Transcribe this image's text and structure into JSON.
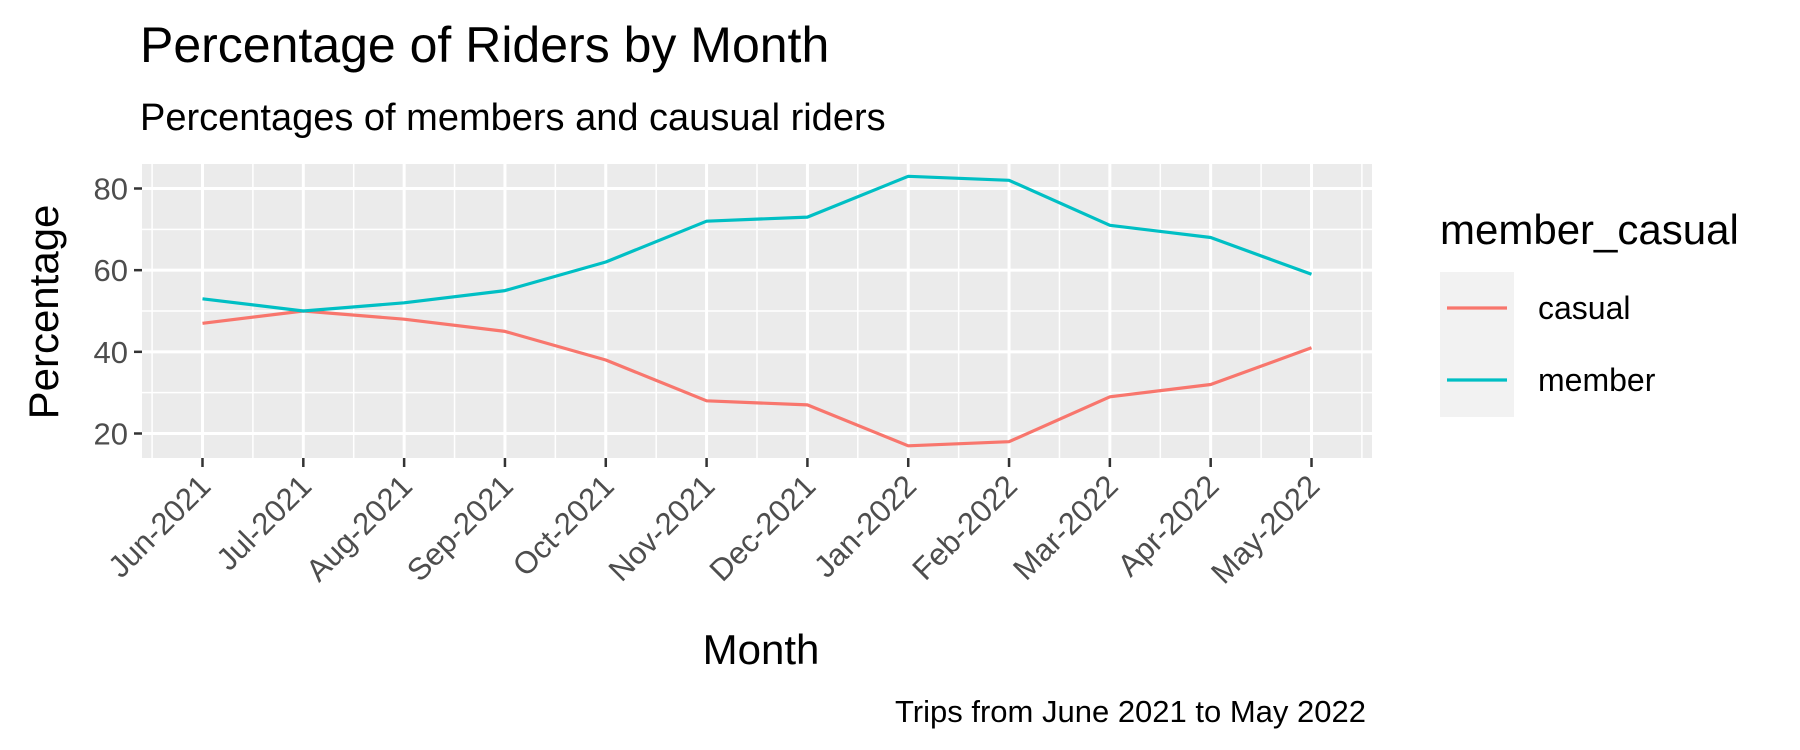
{
  "chart_data": {
    "type": "line",
    "title": "Percentage of Riders by Month",
    "subtitle": "Percentages of members and causual riders",
    "xlabel": "Month",
    "ylabel": "Percentage",
    "caption": "Trips from June 2021 to May 2022",
    "categories": [
      "Jun-2021",
      "Jul-2021",
      "Aug-2021",
      "Sep-2021",
      "Oct-2021",
      "Nov-2021",
      "Dec-2021",
      "Jan-2022",
      "Feb-2022",
      "Mar-2022",
      "Apr-2022",
      "May-2022"
    ],
    "ylim": [
      14,
      86
    ],
    "yticks": [
      20,
      40,
      60,
      80
    ],
    "grid": true,
    "legend": {
      "title": "member_casual",
      "placement": "right"
    },
    "series": [
      {
        "name": "casual",
        "color": "#F8766D",
        "values": [
          47,
          50,
          48,
          45,
          38,
          28,
          27,
          17,
          18,
          29,
          32,
          41
        ]
      },
      {
        "name": "member",
        "color": "#00BFC4",
        "values": [
          53,
          50,
          52,
          55,
          62,
          72,
          73,
          83,
          82,
          71,
          68,
          59
        ]
      }
    ]
  }
}
